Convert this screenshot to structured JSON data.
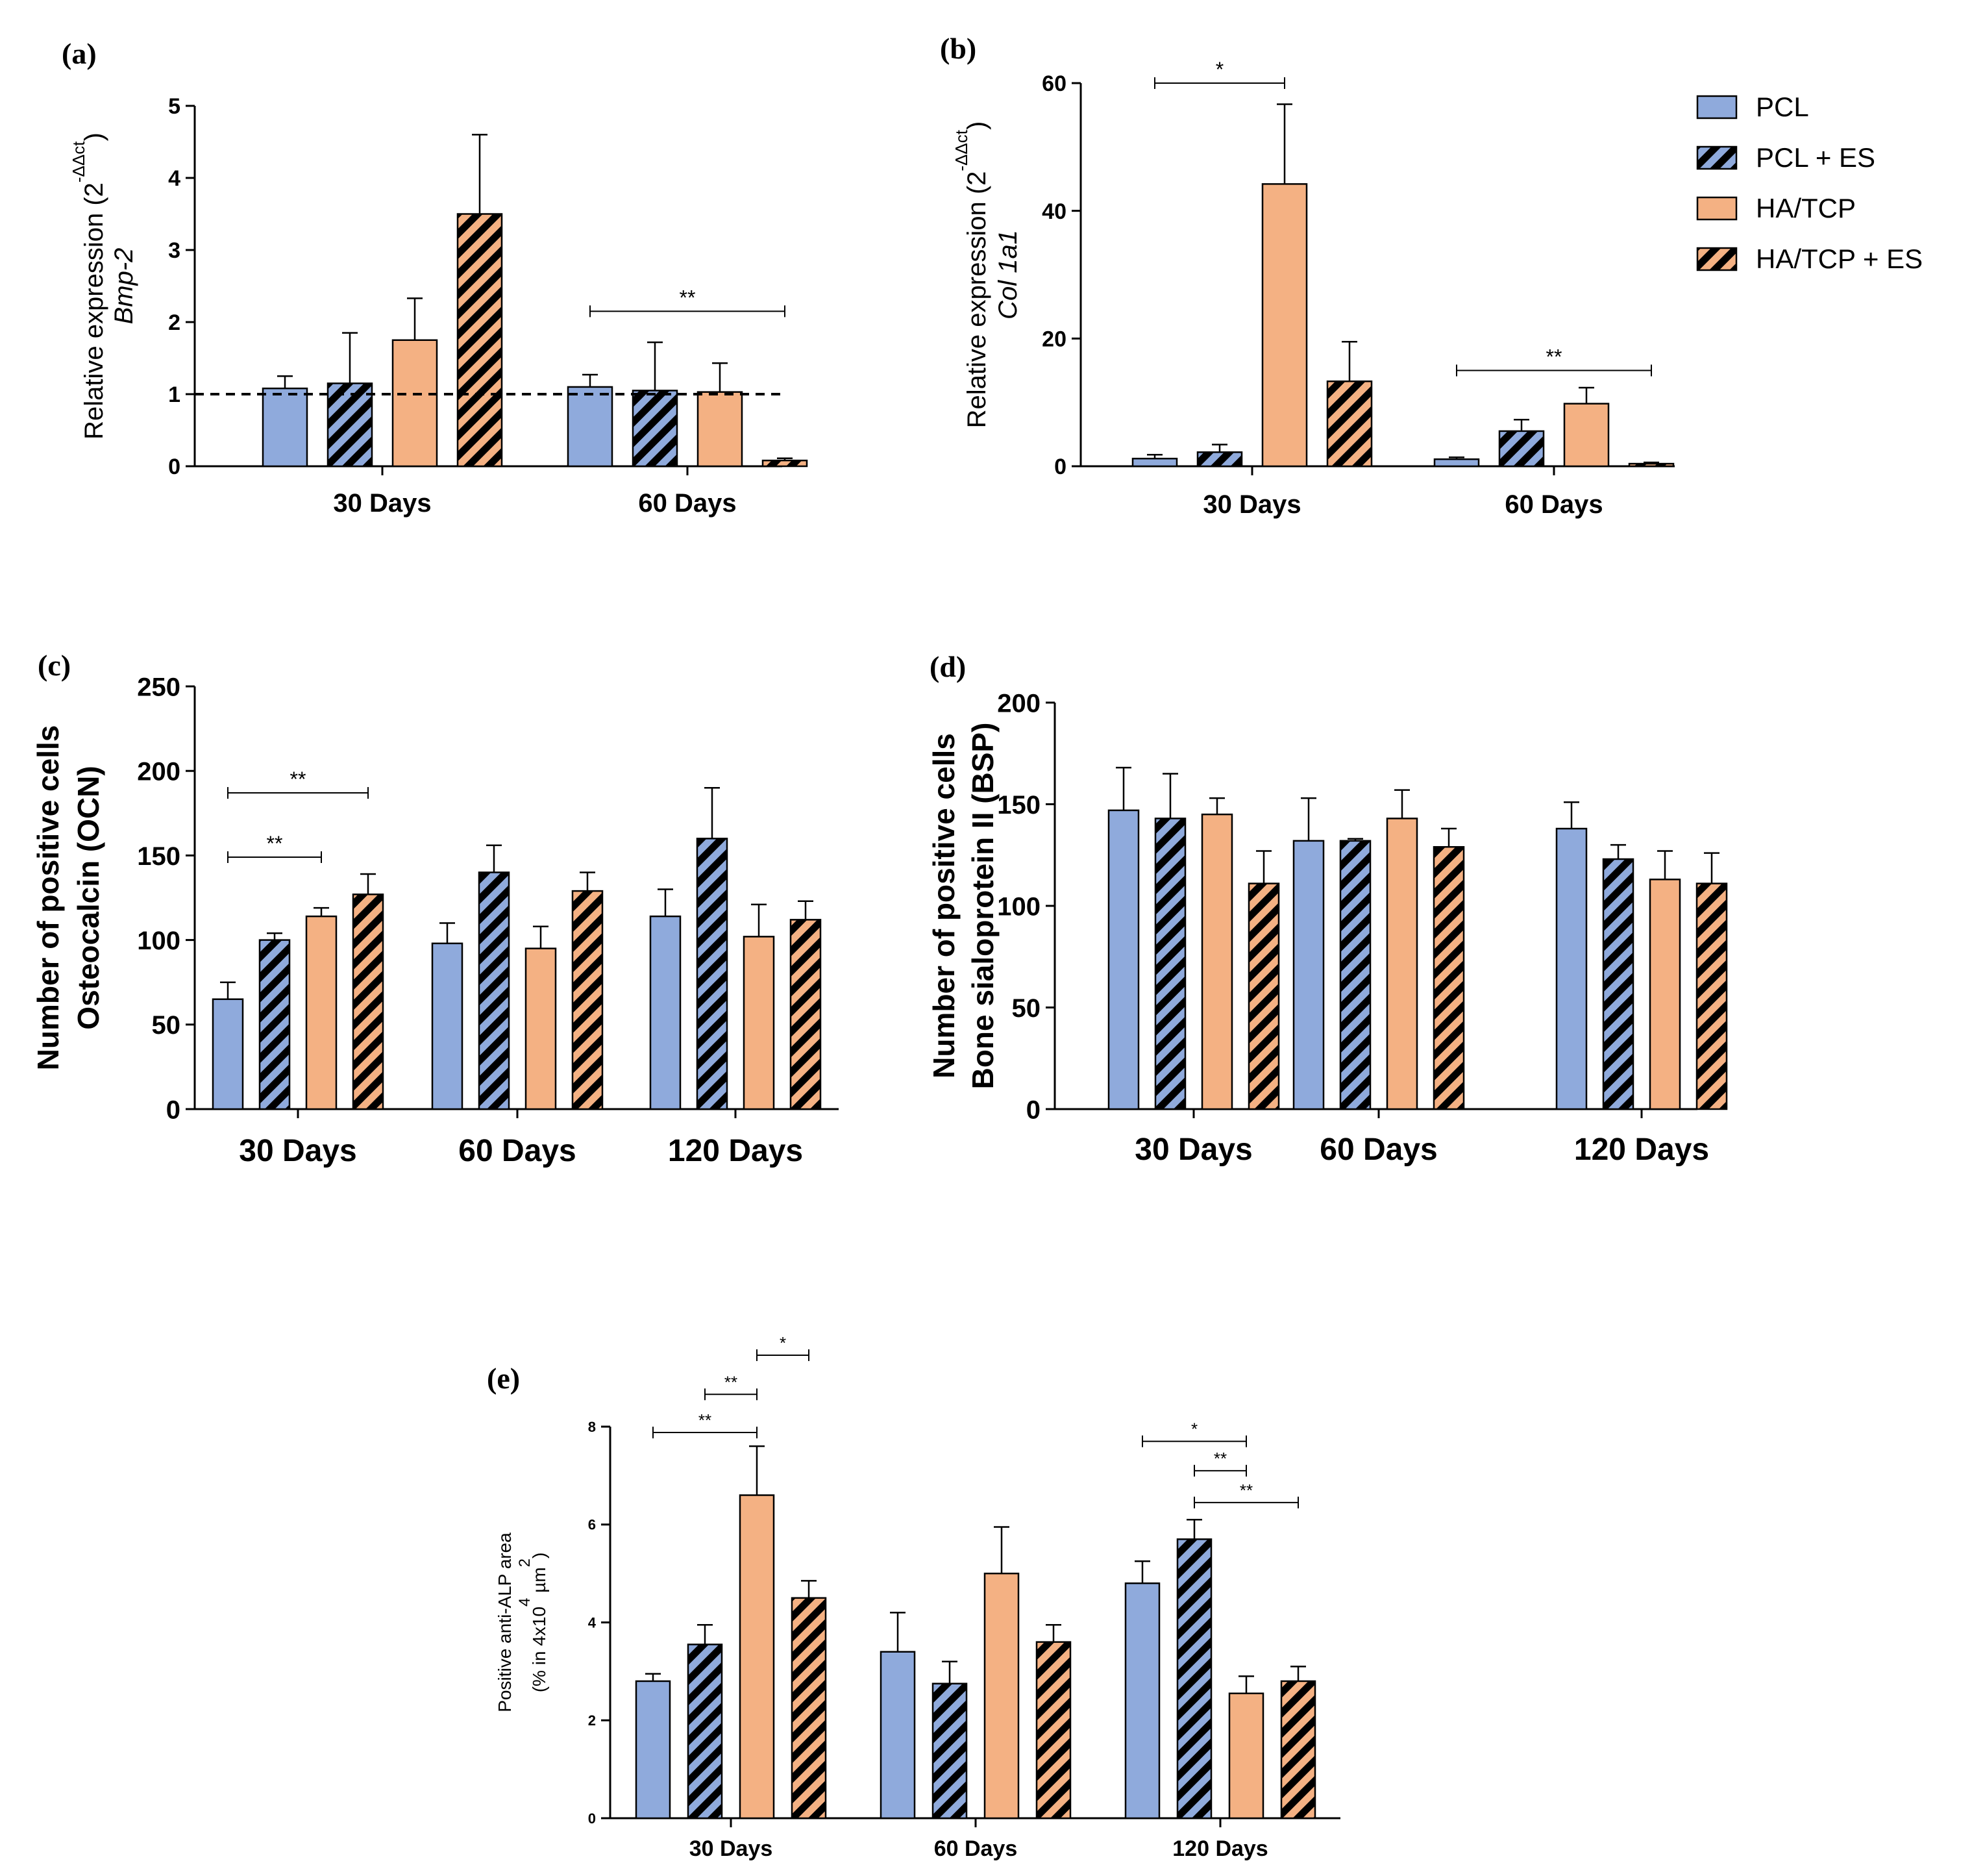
{
  "colors": {
    "pcl": "#8faadc",
    "hatcp": "#f4b183",
    "stripe": "#000000",
    "axis": "#000000"
  },
  "legend": {
    "items": [
      {
        "label": "PCL",
        "color": "pcl",
        "hatched": false
      },
      {
        "label": "PCL + ES",
        "color": "pcl",
        "hatched": true
      },
      {
        "label": "HA/TCP",
        "color": "hatcp",
        "hatched": false
      },
      {
        "label": "HA/TCP + ES",
        "color": "hatcp",
        "hatched": true
      }
    ]
  },
  "chart_data": [
    {
      "panel": "(a)",
      "type": "bar",
      "ylabel_lines": [
        "Relative expression (2",
        "Bmp-2"
      ],
      "ylabel_sup": "-ΔΔct",
      "ylabel_close": ")",
      "ylim": [
        0,
        5
      ],
      "yticks": [
        "0",
        "1",
        "2",
        "3",
        "4",
        "5"
      ],
      "reference_line": 1,
      "categories": [
        "30 Days",
        "60 Days"
      ],
      "series": [
        {
          "name": "PCL",
          "values": [
            1.08,
            1.1
          ],
          "errors": [
            0.17,
            0.17
          ]
        },
        {
          "name": "PCL + ES",
          "values": [
            1.15,
            1.05
          ],
          "errors": [
            0.7,
            0.67
          ]
        },
        {
          "name": "HA/TCP",
          "values": [
            1.75,
            1.03
          ],
          "errors": [
            0.58,
            0.4
          ]
        },
        {
          "name": "HA/TCP + ES",
          "values": [
            3.5,
            0.08
          ],
          "errors": [
            1.1,
            0.03
          ]
        }
      ],
      "significance": [
        {
          "label": "**",
          "category": 1,
          "from": 0,
          "to": 3,
          "y": 2.15
        }
      ]
    },
    {
      "panel": "(b)",
      "type": "bar",
      "ylabel_lines": [
        "Relative expression (2",
        "Col 1a1"
      ],
      "ylabel_sup": "-ΔΔct",
      "ylabel_close": ")",
      "ylim": [
        0,
        60
      ],
      "yticks": [
        "0",
        "20",
        "40",
        "60"
      ],
      "categories": [
        "30 Days",
        "60 Days"
      ],
      "series": [
        {
          "name": "PCL",
          "values": [
            1.2,
            1.1
          ],
          "errors": [
            0.6,
            0.3
          ]
        },
        {
          "name": "PCL + ES",
          "values": [
            2.2,
            5.5
          ],
          "errors": [
            1.2,
            1.8
          ]
        },
        {
          "name": "HA/TCP",
          "values": [
            44.2,
            9.8
          ],
          "errors": [
            12.5,
            2.5
          ]
        },
        {
          "name": "HA/TCP + ES",
          "values": [
            13.3,
            0.4
          ],
          "errors": [
            6.2,
            0.2
          ]
        }
      ],
      "significance": [
        {
          "label": "*",
          "category": 0,
          "from": 0,
          "to": 2,
          "y": 60
        },
        {
          "label": "**",
          "category": 1,
          "from": 0,
          "to": 3,
          "y": 15
        }
      ]
    },
    {
      "panel": "(c)",
      "type": "bar",
      "ylabel_lines": [
        "Number of positive cells",
        "Osteocalcin (OCN)"
      ],
      "ylim": [
        0,
        250
      ],
      "yticks": [
        "0",
        "50",
        "100",
        "150",
        "200",
        "250"
      ],
      "categories": [
        "30 Days",
        "60 Days",
        "120 Days"
      ],
      "series": [
        {
          "name": "PCL",
          "values": [
            65,
            98,
            114
          ],
          "errors": [
            10,
            12,
            16
          ]
        },
        {
          "name": "PCL + ES",
          "values": [
            100,
            140,
            160
          ],
          "errors": [
            4,
            16,
            30
          ]
        },
        {
          "name": "HA/TCP",
          "values": [
            114,
            95,
            102
          ],
          "errors": [
            5,
            13,
            19
          ]
        },
        {
          "name": "HA/TCP + ES",
          "values": [
            127,
            129,
            112
          ],
          "errors": [
            12,
            11,
            11
          ]
        }
      ],
      "significance": [
        {
          "label": "**",
          "category": 0,
          "from": 0,
          "to": 3,
          "y": 187
        },
        {
          "label": "**",
          "category": 0,
          "from": 0,
          "to": 2,
          "y": 149
        }
      ]
    },
    {
      "panel": "(d)",
      "type": "bar",
      "ylabel_lines": [
        "Number of positive cells",
        "Bone sialoprotein II (BSP)"
      ],
      "ylim": [
        0,
        200
      ],
      "yticks": [
        "0",
        "50",
        "100",
        "150",
        "200"
      ],
      "categories": [
        "30 Days",
        "60 Days",
        "120 Days"
      ],
      "series": [
        {
          "name": "PCL",
          "values": [
            147,
            132,
            138
          ],
          "errors": [
            21,
            21,
            13
          ]
        },
        {
          "name": "PCL + ES",
          "values": [
            143,
            132,
            123
          ],
          "errors": [
            22,
            1,
            7
          ]
        },
        {
          "name": "HA/TCP",
          "values": [
            145,
            143,
            113
          ],
          "errors": [
            8,
            14,
            14
          ]
        },
        {
          "name": "HA/TCP + ES",
          "values": [
            111,
            129,
            111
          ],
          "errors": [
            16,
            9,
            15
          ]
        }
      ],
      "significance": []
    },
    {
      "panel": "(e)",
      "type": "bar",
      "ylabel_lines": [
        "Positive anti-ALP area",
        "(% in 4x10"
      ],
      "ylabel_sup": "4",
      "ylabel_mid": " µm",
      "ylabel_sup2": "2",
      "ylabel_close": ")",
      "ylim": [
        0,
        8
      ],
      "yticks": [
        "0",
        "2",
        "4",
        "6",
        "8"
      ],
      "categories": [
        "30 Days",
        "60 Days",
        "120 Days"
      ],
      "series": [
        {
          "name": "PCL",
          "values": [
            2.8,
            3.4,
            4.8
          ],
          "errors": [
            0.15,
            0.8,
            0.45
          ]
        },
        {
          "name": "PCL + ES",
          "values": [
            3.55,
            2.75,
            5.7
          ],
          "errors": [
            0.4,
            0.45,
            0.4
          ]
        },
        {
          "name": "HA/TCP",
          "values": [
            6.6,
            5.0,
            2.55
          ],
          "errors": [
            1.0,
            0.95,
            0.35
          ]
        },
        {
          "name": "HA/TCP + ES",
          "values": [
            4.5,
            3.6,
            2.8
          ],
          "errors": [
            0.35,
            0.35,
            0.3
          ]
        }
      ],
      "significance": [
        {
          "label": "**",
          "category": 0,
          "from": 0,
          "to": 2,
          "y": 7.88
        },
        {
          "label": "**",
          "category": 0,
          "from": 1,
          "to": 2,
          "y": 8.66
        },
        {
          "label": "*",
          "category": 0,
          "from": 2,
          "to": 3,
          "y": 9.46
        },
        {
          "label": "*",
          "category": 2,
          "from": 0,
          "to": 2,
          "y": 7.7
        },
        {
          "label": "**",
          "category": 2,
          "from": 1,
          "to": 2,
          "y": 7.1
        },
        {
          "label": "**",
          "category": 2,
          "from": 1,
          "to": 3,
          "y": 6.45
        }
      ]
    }
  ]
}
